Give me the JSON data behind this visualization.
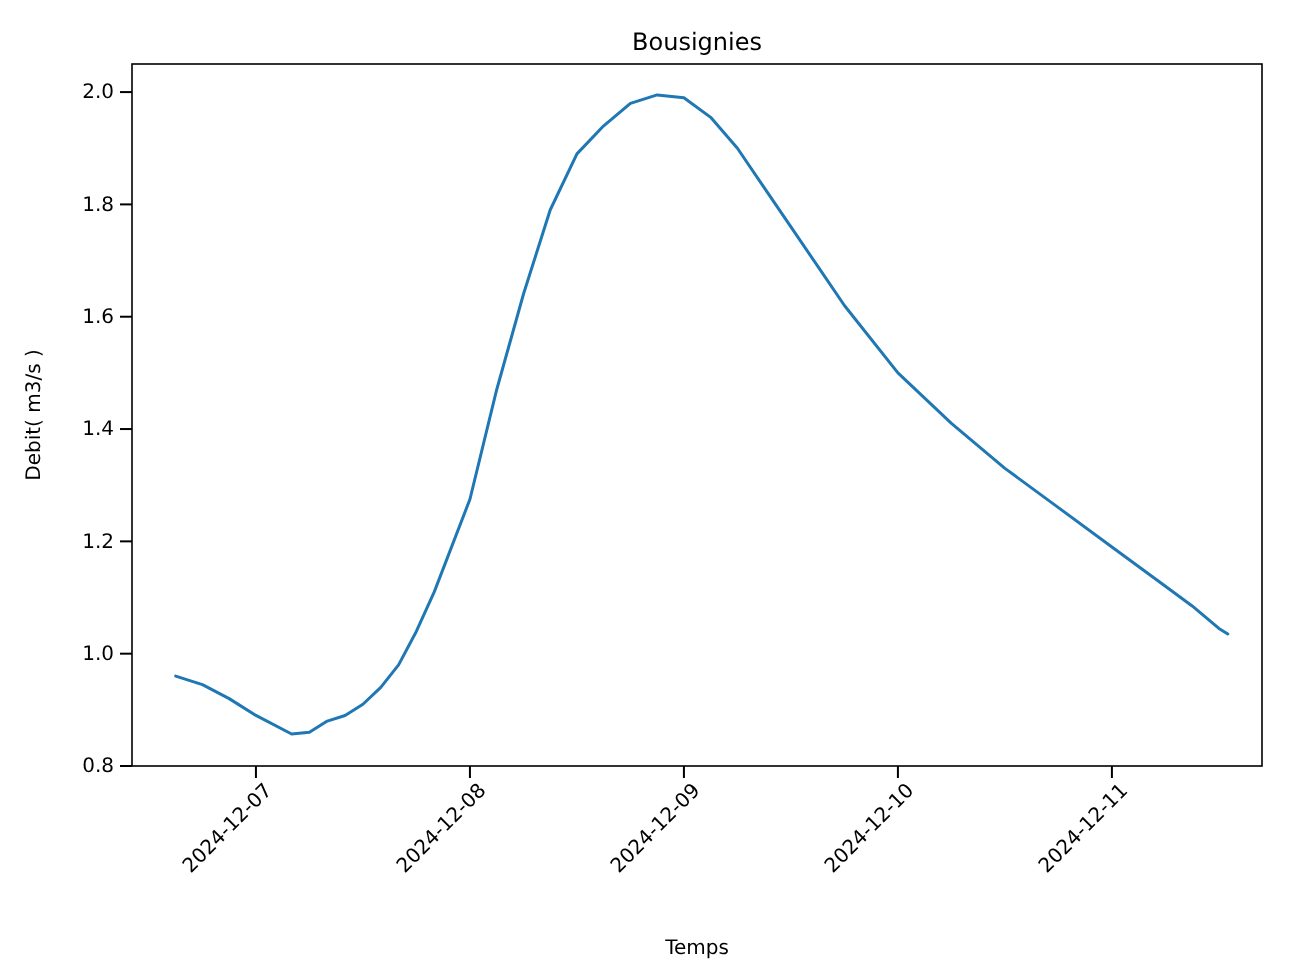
{
  "chart_data": {
    "type": "line",
    "title": "Bousignies",
    "xlabel": "Temps",
    "ylabel": "Debit( m3/s )",
    "x": [
      "2024-12-06T15:00",
      "2024-12-06T18:00",
      "2024-12-06T21:00",
      "2024-12-07T00:00",
      "2024-12-07T04:00",
      "2024-12-07T06:00",
      "2024-12-07T08:00",
      "2024-12-07T10:00",
      "2024-12-07T12:00",
      "2024-12-07T14:00",
      "2024-12-07T16:00",
      "2024-12-07T18:00",
      "2024-12-07T20:00",
      "2024-12-08T00:00",
      "2024-12-08T03:00",
      "2024-12-08T06:00",
      "2024-12-08T09:00",
      "2024-12-08T12:00",
      "2024-12-08T15:00",
      "2024-12-08T18:00",
      "2024-12-08T21:00",
      "2024-12-09T00:00",
      "2024-12-09T03:00",
      "2024-12-09T06:00",
      "2024-12-09T09:00",
      "2024-12-09T12:00",
      "2024-12-09T15:00",
      "2024-12-09T18:00",
      "2024-12-10T00:00",
      "2024-12-10T06:00",
      "2024-12-10T12:00",
      "2024-12-10T18:00",
      "2024-12-11T00:00",
      "2024-12-11T06:00",
      "2024-12-11T09:00",
      "2024-12-11T12:00",
      "2024-12-11T13:00"
    ],
    "series": [
      {
        "color": "#1f77b4",
        "values": [
          0.96,
          0.945,
          0.92,
          0.89,
          0.857,
          0.86,
          0.88,
          0.89,
          0.91,
          0.94,
          0.98,
          1.04,
          1.11,
          1.275,
          1.47,
          1.64,
          1.79,
          1.89,
          1.94,
          1.98,
          1.995,
          1.99,
          1.955,
          1.9,
          1.83,
          1.76,
          1.69,
          1.62,
          1.5,
          1.41,
          1.33,
          1.26,
          1.19,
          1.12,
          1.085,
          1.045,
          1.035
        ]
      }
    ],
    "xlim": [
      "2024-12-06T10:06",
      "2024-12-11T16:50"
    ],
    "xticks": [
      "2024-12-07",
      "2024-12-08",
      "2024-12-09",
      "2024-12-10",
      "2024-12-11"
    ],
    "ylim": [
      0.8,
      2.05
    ],
    "yticks": [
      0.8,
      {
        "value": 1,
        "label": "1.0"
      },
      1.2,
      1.4,
      1.6,
      1.8,
      {
        "value": 2,
        "label": "2.0"
      }
    ],
    "marker": "none",
    "line_style": "solid"
  }
}
